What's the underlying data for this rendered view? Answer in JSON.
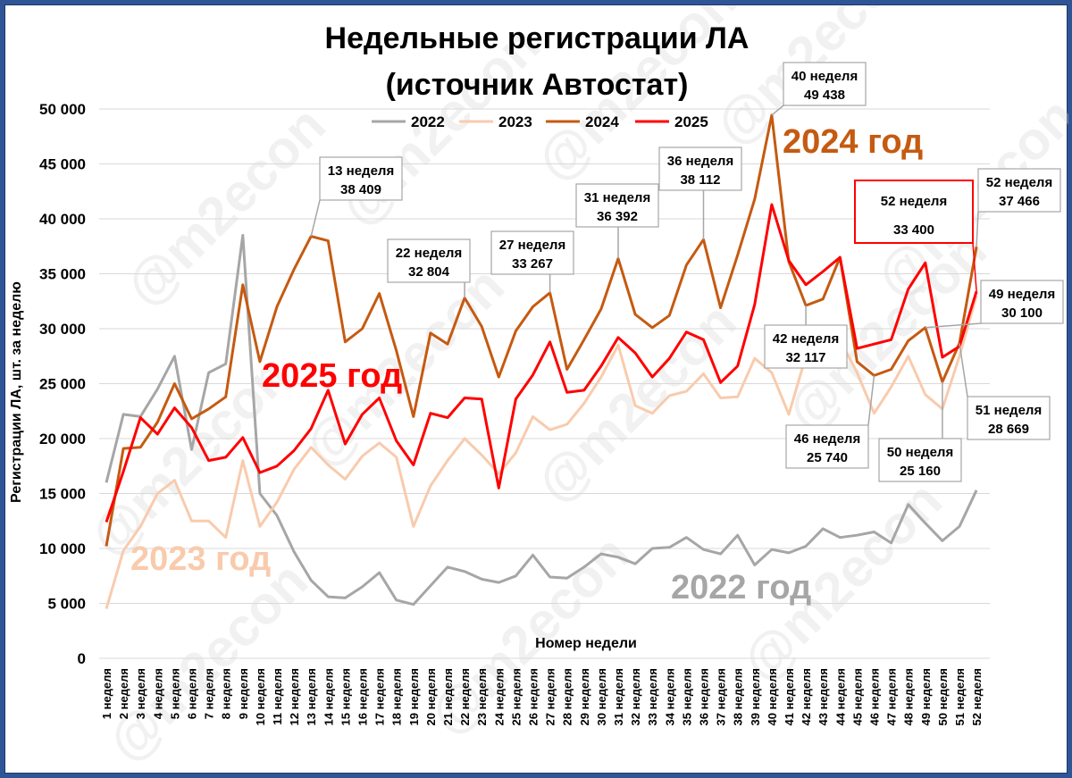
{
  "chart_data": {
    "type": "line",
    "title": [
      "Недельные регистрации ЛА",
      "(источник Автостат)"
    ],
    "xlabel": "Номер недели",
    "ylabel": "Регистрации ЛА, шт. за неделю",
    "ylim": [
      0,
      50000
    ],
    "yticks": [
      0,
      5000,
      10000,
      15000,
      20000,
      25000,
      30000,
      35000,
      40000,
      45000,
      50000
    ],
    "ytick_labels": [
      "0",
      "5 000",
      "10 000",
      "15 000",
      "20 000",
      "25 000",
      "30 000",
      "35 000",
      "40 000",
      "45 000",
      "50 000"
    ],
    "grid": true,
    "legend_position": "top-center",
    "categories": [
      "1 неделя",
      "2 неделя",
      "3 неделя",
      "4 неделя",
      "5 неделя",
      "6 неделя",
      "7 неделя",
      "8 неделя",
      "9 неделя",
      "10 неделя",
      "11 неделя",
      "12 неделя",
      "13 неделя",
      "14 неделя",
      "15 неделя",
      "16 неделя",
      "17 неделя",
      "18 неделя",
      "19 неделя",
      "20 неделя",
      "21 неделя",
      "22 неделя",
      "23 неделя",
      "24 неделя",
      "25 неделя",
      "26 неделя",
      "27 неделя",
      "28 неделя",
      "29 неделя",
      "30 неделя",
      "31 неделя",
      "32 неделя",
      "33 неделя",
      "34 неделя",
      "35 неделя",
      "36 неделя",
      "37 неделя",
      "38 неделя",
      "39 неделя",
      "40 неделя",
      "41 неделя",
      "42 неделя",
      "43 неделя",
      "44 неделя",
      "45 неделя",
      "46 неделя",
      "47 неделя",
      "48 неделя",
      "49 неделя",
      "50 неделя",
      "51 неделя",
      "52 неделя"
    ],
    "series": [
      {
        "name": "2022",
        "color": "#a6a6a6",
        "values": [
          16000,
          22200,
          22000,
          24500,
          27500,
          19000,
          26000,
          26800,
          38500,
          15000,
          13000,
          9700,
          7100,
          5600,
          5500,
          6500,
          7800,
          5300,
          4900,
          6600,
          8300,
          7900,
          7200,
          6900,
          7500,
          9400,
          7400,
          7300,
          8300,
          9500,
          9200,
          8600,
          10000,
          10100,
          11000,
          9900,
          9500,
          11200,
          8500,
          9900,
          9600,
          10200,
          11800,
          11000,
          11200,
          11500,
          10500,
          14000,
          12300,
          10700,
          12000,
          15300
        ]
      },
      {
        "name": "2023",
        "color": "#f8cbad",
        "values": [
          4500,
          9800,
          12000,
          15000,
          16200,
          12500,
          12500,
          11000,
          18000,
          12000,
          14200,
          17200,
          19200,
          17600,
          16300,
          18400,
          19600,
          18300,
          12000,
          15700,
          18000,
          20000,
          18500,
          16800,
          18700,
          22000,
          20800,
          21300,
          23200,
          25600,
          28500,
          23000,
          22300,
          23900,
          24300,
          25900,
          23700,
          23800,
          27300,
          26000,
          22200,
          27500,
          28000,
          29000,
          26000,
          22300,
          24700,
          27500,
          24000,
          22700,
          27500,
          33000
        ]
      },
      {
        "name": "2024",
        "color": "#c55a11",
        "values": [
          10200,
          19100,
          19200,
          21500,
          25000,
          21800,
          22700,
          23800,
          34000,
          27000,
          32000,
          35400,
          38409,
          38000,
          28800,
          30000,
          33200,
          28000,
          22000,
          29600,
          28600,
          32804,
          30200,
          25600,
          29800,
          32000,
          33267,
          26300,
          29000,
          31800,
          36392,
          31300,
          30100,
          31200,
          35800,
          38112,
          31900,
          36700,
          41800,
          49438,
          36100,
          32117,
          32700,
          36500,
          27000,
          25740,
          26300,
          28900,
          30100,
          25160,
          28669,
          37466
        ]
      },
      {
        "name": "2025",
        "color": "#ff0000",
        "values": [
          12400,
          17000,
          21900,
          20400,
          22800,
          21000,
          18000,
          18300,
          20100,
          16900,
          17500,
          18900,
          20900,
          24400,
          19500,
          22200,
          23700,
          19800,
          17600,
          22300,
          21900,
          23700,
          23600,
          15500,
          23600,
          25800,
          28800,
          24200,
          24400,
          26600,
          29200,
          27800,
          25600,
          27300,
          29700,
          29000,
          25100,
          26600,
          32200,
          41300,
          36200,
          34000,
          35200,
          36500,
          28200,
          28600,
          29000,
          33600,
          36000,
          27400,
          28400,
          33400
        ]
      }
    ],
    "annotations": {
      "w13": {
        "line1": "13 неделя",
        "line2": "38 409"
      },
      "w22": {
        "line1": "22 неделя",
        "line2": "32 804"
      },
      "w27": {
        "line1": "27 неделя",
        "line2": "33 267"
      },
      "w31": {
        "line1": "31 неделя",
        "line2": "36 392"
      },
      "w36": {
        "line1": "36 неделя",
        "line2": "38 112"
      },
      "w40": {
        "line1": "40 неделя",
        "line2": "49 438"
      },
      "w42": {
        "line1": "42 неделя",
        "line2": "32 117"
      },
      "w46": {
        "line1": "46 неделя",
        "line2": "25 740"
      },
      "w49": {
        "line1": "49 неделя",
        "line2": "30 100"
      },
      "w50": {
        "line1": "50 неделя",
        "line2": "25 160"
      },
      "w51": {
        "line1": "51 неделя",
        "line2": "28 669"
      },
      "w52_2024": {
        "line1": "52 неделя",
        "line2": "37 466"
      },
      "w52_2025": {
        "line1": "52 неделя",
        "line2": "33 400"
      }
    },
    "year_labels": {
      "y2024": "2024 год",
      "y2025": "2025 год",
      "y2023": "2023 год",
      "y2022": "2022 год"
    }
  },
  "watermark": "@m2econ"
}
